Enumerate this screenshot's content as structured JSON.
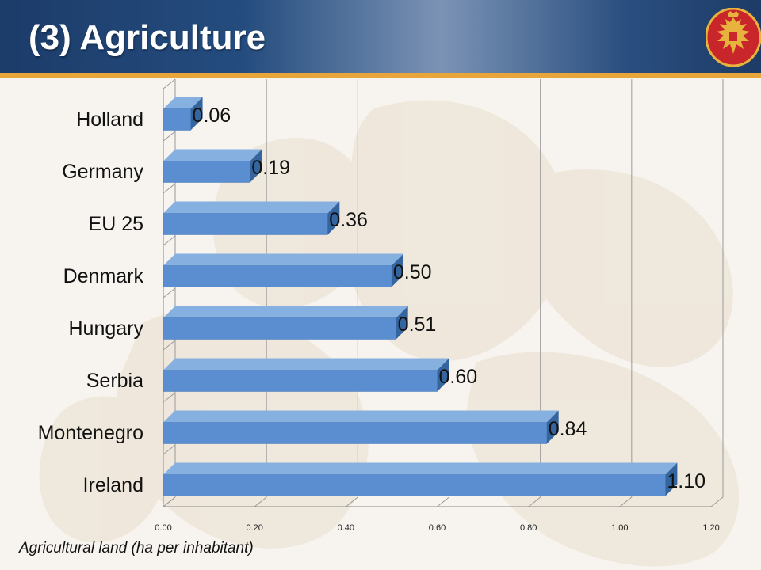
{
  "slide": {
    "title": "(3) Agriculture"
  },
  "colors": {
    "header_dark": "#1c3c6a",
    "header_rule": "#e8a53a",
    "bar_front": "#5b8ed0",
    "bar_top": "#86b0e0",
    "bar_side": "#35659f",
    "emblem_red": "#c8262b",
    "emblem_gold": "#e8b33d"
  },
  "chart_data": {
    "type": "bar",
    "orientation": "horizontal",
    "categories": [
      "Holland",
      "Germany",
      "EU 25",
      "Denmark",
      "Hungary",
      "Serbia",
      "Montenegro",
      "Ireland"
    ],
    "values": [
      0.06,
      0.19,
      0.36,
      0.5,
      0.51,
      0.6,
      0.84,
      1.1
    ],
    "value_labels": [
      "0.06",
      "0.19",
      "0.36",
      "0.50",
      "0.51",
      "0.60",
      "0.84",
      "1.10"
    ],
    "xlabel": "Agricultural land (ha per inhabitant)",
    "ylabel": "",
    "xlim": [
      0,
      1.2
    ],
    "xticks": [
      "0.00",
      "0.20",
      "0.40",
      "0.60",
      "0.80",
      "1.00",
      "1.20"
    ],
    "grid": true,
    "legend": "none"
  }
}
